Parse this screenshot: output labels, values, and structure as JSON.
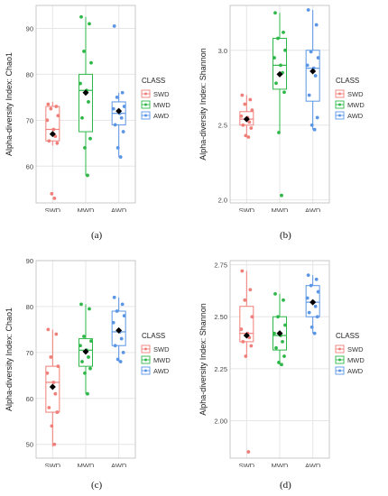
{
  "colors": {
    "SWD": "#f07f7a",
    "MWD": "#2fb84a",
    "AWD": "#5b96e6",
    "grid": "#e6e6e6",
    "panel_border": "#bdbdbd",
    "mean": "#000000"
  },
  "chart_data": [
    {
      "type": "box",
      "caption": "(a)",
      "ylabel": "Alpha-diversity Index: Chao1",
      "categories": [
        "SWD",
        "MWD",
        "AWD"
      ],
      "ylim": [
        52,
        95
      ],
      "yticks": [
        60,
        70,
        80,
        90
      ],
      "ytick_labels": [
        "60",
        "70",
        "80",
        "90"
      ],
      "legend": {
        "title": "CLASS",
        "entries": [
          "SWD",
          "MWD",
          "AWD"
        ],
        "position": "right"
      },
      "series": [
        {
          "name": "SWD",
          "q1": 65.5,
          "median": 68,
          "q3": 73,
          "whisker_low": 64.5,
          "whisker_high": 74,
          "mean": 67,
          "points": [
            73.5,
            73,
            72.5,
            71,
            70,
            68,
            66.5,
            65.5,
            65,
            54,
            53
          ]
        },
        {
          "name": "MWD",
          "q1": 67.5,
          "median": 76.5,
          "q3": 80,
          "whisker_low": 58,
          "whisker_high": 92.5,
          "mean": 76,
          "points": [
            92.5,
            91,
            85,
            82.5,
            78,
            76.5,
            74,
            70.5,
            66,
            64,
            58
          ]
        },
        {
          "name": "AWD",
          "q1": 69,
          "median": 71.5,
          "q3": 74,
          "whisker_low": 62,
          "whisker_high": 76,
          "mean": 72,
          "points": [
            90.5,
            76,
            75,
            73,
            72.5,
            71.5,
            70.5,
            69,
            67.5,
            64,
            62
          ]
        }
      ]
    },
    {
      "type": "box",
      "caption": "(b)",
      "ylabel": "Alpha-diversity Index: Shannon",
      "categories": [
        "SWD",
        "MWD",
        "AWD"
      ],
      "ylim": [
        1.98,
        3.3
      ],
      "yticks": [
        2.0,
        2.5,
        3.0
      ],
      "ytick_labels": [
        "2.0",
        "2.5",
        "3.0"
      ],
      "legend": {
        "title": "CLASS",
        "entries": [
          "SWD",
          "MWD",
          "AWD"
        ],
        "position": "right"
      },
      "series": [
        {
          "name": "SWD",
          "q1": 2.5,
          "median": 2.54,
          "q3": 2.59,
          "whisker_low": 2.42,
          "whisker_high": 2.7,
          "mean": 2.54,
          "points": [
            2.7,
            2.67,
            2.64,
            2.6,
            2.56,
            2.55,
            2.52,
            2.5,
            2.48,
            2.43,
            2.42
          ]
        },
        {
          "name": "MWD",
          "q1": 2.74,
          "median": 2.9,
          "q3": 3.08,
          "whisker_low": 2.45,
          "whisker_high": 3.25,
          "mean": 2.84,
          "points": [
            3.25,
            3.12,
            3.08,
            3.0,
            2.95,
            2.9,
            2.85,
            2.78,
            2.72,
            2.45,
            2.03
          ]
        },
        {
          "name": "AWD",
          "q1": 2.66,
          "median": 2.88,
          "q3": 3.0,
          "whisker_low": 2.47,
          "whisker_high": 3.27,
          "mean": 2.86,
          "points": [
            3.27,
            3.17,
            2.99,
            2.95,
            2.9,
            2.88,
            2.83,
            2.7,
            2.55,
            2.5,
            2.47
          ]
        }
      ]
    },
    {
      "type": "box",
      "caption": "(c)",
      "ylabel": "Alpha-diversity Index: Chao1",
      "categories": [
        "SWD",
        "MWD",
        "AWD"
      ],
      "ylim": [
        47,
        90
      ],
      "yticks": [
        50,
        60,
        70,
        80,
        90
      ],
      "ytick_labels": [
        "50",
        "60",
        "70",
        "80",
        "90"
      ],
      "legend": {
        "title": "CLASS",
        "entries": [
          "SWD",
          "MWD",
          "AWD"
        ],
        "position": "right"
      },
      "series": [
        {
          "name": "SWD",
          "q1": 57,
          "median": 63.5,
          "q3": 67,
          "whisker_low": 49.5,
          "whisker_high": 75,
          "mean": 62.5,
          "points": [
            75,
            74,
            69,
            67,
            65.5,
            63.5,
            61,
            58,
            57,
            54,
            50
          ]
        },
        {
          "name": "MWD",
          "q1": 67,
          "median": 70.5,
          "q3": 73,
          "whisker_low": 61,
          "whisker_high": 80.5,
          "mean": 70.2,
          "points": [
            80.5,
            79.5,
            73.5,
            72.5,
            71.5,
            70.5,
            69,
            68,
            66.5,
            65.5,
            61
          ]
        },
        {
          "name": "AWD",
          "q1": 71.5,
          "median": 74.5,
          "q3": 79,
          "whisker_low": 68,
          "whisker_high": 82,
          "mean": 74.8,
          "points": [
            82,
            80.5,
            79,
            78,
            76.5,
            74.5,
            73,
            71.5,
            70,
            68.5,
            68
          ]
        }
      ]
    },
    {
      "type": "box",
      "caption": "(d)",
      "ylabel": "Alpha-diversity Index: Shannon",
      "categories": [
        "SWD",
        "MWD",
        "AWD"
      ],
      "ylim": [
        1.82,
        2.77
      ],
      "yticks": [
        2.0,
        2.25,
        2.5,
        2.75
      ],
      "ytick_labels": [
        "2.00",
        "2.25",
        "2.50",
        "2.75"
      ],
      "legend": {
        "title": "CLASS",
        "entries": [
          "SWD",
          "MWD",
          "AWD"
        ],
        "position": "right"
      },
      "series": [
        {
          "name": "SWD",
          "q1": 2.38,
          "median": 2.42,
          "q3": 2.55,
          "whisker_low": 2.31,
          "whisker_high": 2.72,
          "mean": 2.41,
          "points": [
            2.72,
            2.63,
            2.58,
            2.5,
            2.44,
            2.42,
            2.4,
            2.38,
            2.36,
            2.31,
            1.85
          ]
        },
        {
          "name": "MWD",
          "q1": 2.34,
          "median": 2.41,
          "q3": 2.5,
          "whisker_low": 2.27,
          "whisker_high": 2.61,
          "mean": 2.42,
          "points": [
            2.61,
            2.58,
            2.5,
            2.46,
            2.42,
            2.41,
            2.38,
            2.35,
            2.31,
            2.28,
            2.27
          ]
        },
        {
          "name": "AWD",
          "q1": 2.5,
          "median": 2.57,
          "q3": 2.65,
          "whisker_low": 2.42,
          "whisker_high": 2.7,
          "mean": 2.57,
          "points": [
            2.7,
            2.68,
            2.65,
            2.62,
            2.59,
            2.57,
            2.55,
            2.52,
            2.5,
            2.45,
            2.42
          ]
        }
      ]
    }
  ]
}
